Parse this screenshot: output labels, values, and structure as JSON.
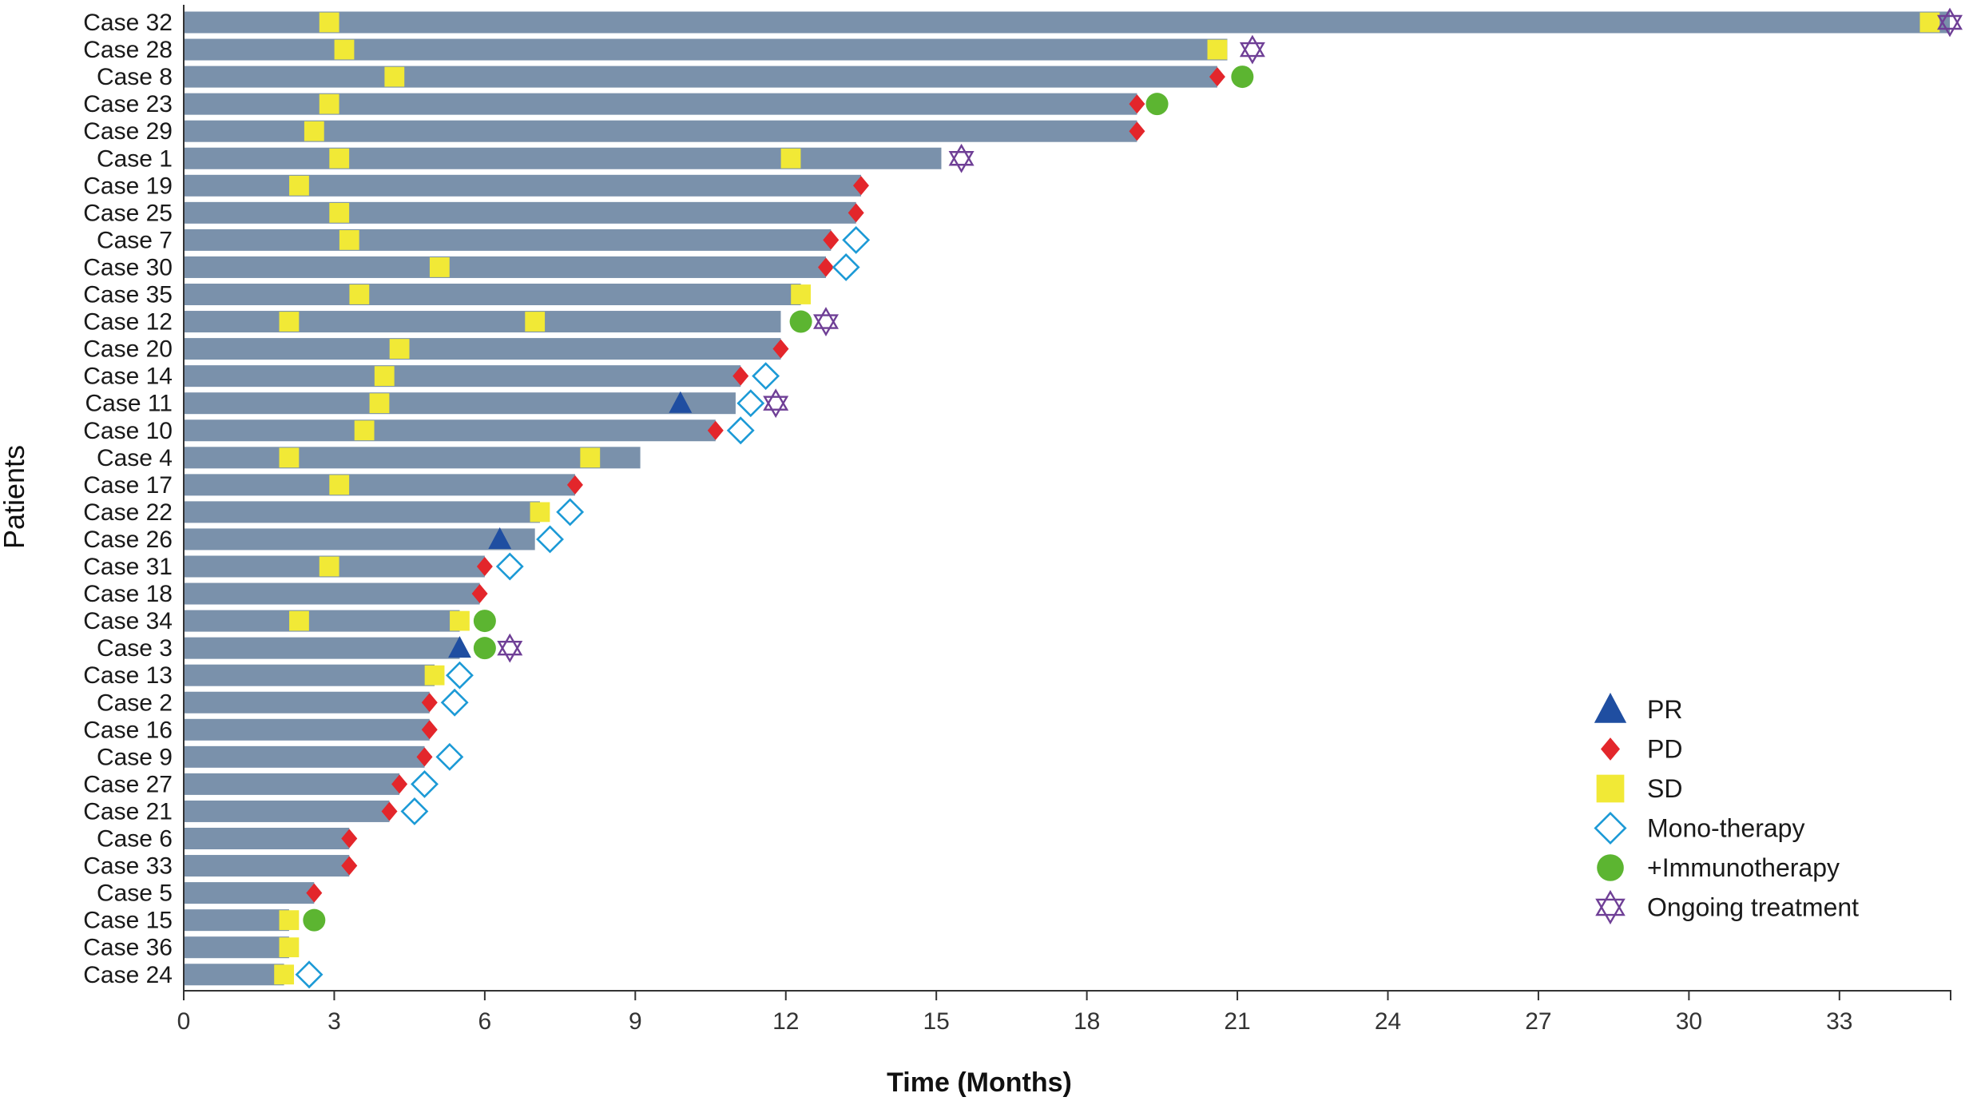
{
  "chart_data": {
    "type": "swimmer",
    "xlabel": "Time (Months)",
    "ylabel": "Patients",
    "xlim": [
      0,
      35.2
    ],
    "xticks": [
      0,
      3,
      6,
      9,
      12,
      15,
      18,
      21,
      24,
      27,
      30,
      33
    ],
    "bar_color": "#7a91ab",
    "legend": [
      {
        "key": "PR",
        "label": "PR",
        "shape": "triangle",
        "color": "#1f4ea1"
      },
      {
        "key": "PD",
        "label": "PD",
        "shape": "diamond",
        "color": "#e3262b"
      },
      {
        "key": "SD",
        "label": "SD",
        "shape": "square",
        "color": "#f1e936"
      },
      {
        "key": "MONO",
        "label": "Mono-therapy",
        "shape": "diamond-open",
        "color": "#1c9ad6"
      },
      {
        "key": "IMMUNO",
        "label": "+Immunotherapy",
        "shape": "circle",
        "color": "#5cb531"
      },
      {
        "key": "ONGOING",
        "label": "Ongoing treatment",
        "shape": "star-open",
        "color": "#6f3f96"
      }
    ],
    "patients": [
      {
        "name": "Case 32",
        "duration": 35.2,
        "markers": [
          [
            "SD",
            2.9
          ],
          [
            "SD",
            34.8
          ],
          [
            "ONGOING",
            35.2
          ]
        ]
      },
      {
        "name": "Case 28",
        "duration": 20.8,
        "markers": [
          [
            "SD",
            3.2
          ],
          [
            "SD",
            20.6
          ],
          [
            "ONGOING",
            21.3
          ]
        ]
      },
      {
        "name": "Case 8",
        "duration": 20.6,
        "markers": [
          [
            "SD",
            4.2
          ],
          [
            "PD",
            20.6
          ],
          [
            "IMMUNO",
            21.1
          ]
        ]
      },
      {
        "name": "Case 23",
        "duration": 19.0,
        "markers": [
          [
            "SD",
            2.9
          ],
          [
            "PD",
            19.0
          ],
          [
            "IMMUNO",
            19.4
          ]
        ]
      },
      {
        "name": "Case 29",
        "duration": 19.0,
        "markers": [
          [
            "SD",
            2.6
          ],
          [
            "PD",
            19.0
          ]
        ]
      },
      {
        "name": "Case 1",
        "duration": 15.1,
        "markers": [
          [
            "SD",
            3.1
          ],
          [
            "SD",
            12.1
          ],
          [
            "ONGOING",
            15.5
          ]
        ]
      },
      {
        "name": "Case 19",
        "duration": 13.5,
        "markers": [
          [
            "SD",
            2.3
          ],
          [
            "PD",
            13.5
          ]
        ]
      },
      {
        "name": "Case 25",
        "duration": 13.4,
        "markers": [
          [
            "SD",
            3.1
          ],
          [
            "PD",
            13.4
          ]
        ]
      },
      {
        "name": "Case 7",
        "duration": 12.9,
        "markers": [
          [
            "SD",
            3.3
          ],
          [
            "PD",
            12.9
          ],
          [
            "MONO",
            13.4
          ]
        ]
      },
      {
        "name": "Case 30",
        "duration": 12.8,
        "markers": [
          [
            "SD",
            5.1
          ],
          [
            "PD",
            12.8
          ],
          [
            "MONO",
            13.2
          ]
        ]
      },
      {
        "name": "Case 35",
        "duration": 12.3,
        "markers": [
          [
            "SD",
            3.5
          ],
          [
            "SD",
            12.3
          ]
        ]
      },
      {
        "name": "Case 12",
        "duration": 11.9,
        "markers": [
          [
            "SD",
            2.1
          ],
          [
            "SD",
            7.0
          ],
          [
            "IMMUNO",
            12.3
          ],
          [
            "ONGOING",
            12.8
          ]
        ]
      },
      {
        "name": "Case 20",
        "duration": 11.9,
        "markers": [
          [
            "SD",
            4.3
          ],
          [
            "PD",
            11.9
          ]
        ]
      },
      {
        "name": "Case 14",
        "duration": 11.1,
        "markers": [
          [
            "SD",
            4.0
          ],
          [
            "PD",
            11.1
          ],
          [
            "MONO",
            11.6
          ]
        ]
      },
      {
        "name": "Case 11",
        "duration": 11.0,
        "markers": [
          [
            "SD",
            3.9
          ],
          [
            "PR",
            9.9
          ],
          [
            "MONO",
            11.3
          ],
          [
            "ONGOING",
            11.8
          ]
        ]
      },
      {
        "name": "Case 10",
        "duration": 10.6,
        "markers": [
          [
            "SD",
            3.6
          ],
          [
            "PD",
            10.6
          ],
          [
            "MONO",
            11.1
          ]
        ]
      },
      {
        "name": "Case 4",
        "duration": 9.1,
        "markers": [
          [
            "SD",
            2.1
          ],
          [
            "SD",
            8.1
          ]
        ]
      },
      {
        "name": "Case 17",
        "duration": 7.8,
        "markers": [
          [
            "SD",
            3.1
          ],
          [
            "PD",
            7.8
          ]
        ]
      },
      {
        "name": "Case 22",
        "duration": 7.1,
        "markers": [
          [
            "SD",
            7.1
          ],
          [
            "MONO",
            7.7
          ]
        ]
      },
      {
        "name": "Case 26",
        "duration": 7.0,
        "markers": [
          [
            "PR",
            6.3
          ],
          [
            "MONO",
            7.3
          ]
        ]
      },
      {
        "name": "Case 31",
        "duration": 6.0,
        "markers": [
          [
            "SD",
            2.9
          ],
          [
            "PD",
            6.0
          ],
          [
            "MONO",
            6.5
          ]
        ]
      },
      {
        "name": "Case 18",
        "duration": 5.9,
        "markers": [
          [
            "PD",
            5.9
          ]
        ]
      },
      {
        "name": "Case 34",
        "duration": 5.5,
        "markers": [
          [
            "SD",
            2.3
          ],
          [
            "SD",
            5.5
          ],
          [
            "IMMUNO",
            6.0
          ]
        ]
      },
      {
        "name": "Case 3",
        "duration": 5.5,
        "markers": [
          [
            "PR",
            5.5
          ],
          [
            "IMMUNO",
            6.0
          ],
          [
            "ONGOING",
            6.5
          ]
        ]
      },
      {
        "name": "Case 13",
        "duration": 5.0,
        "markers": [
          [
            "SD",
            5.0
          ],
          [
            "MONO",
            5.5
          ]
        ]
      },
      {
        "name": "Case 2",
        "duration": 4.9,
        "markers": [
          [
            "PD",
            4.9
          ],
          [
            "MONO",
            5.4
          ]
        ]
      },
      {
        "name": "Case 16",
        "duration": 4.9,
        "markers": [
          [
            "PD",
            4.9
          ]
        ]
      },
      {
        "name": "Case 9",
        "duration": 4.8,
        "markers": [
          [
            "PD",
            4.8
          ],
          [
            "MONO",
            5.3
          ]
        ]
      },
      {
        "name": "Case 27",
        "duration": 4.3,
        "markers": [
          [
            "PD",
            4.3
          ],
          [
            "MONO",
            4.8
          ]
        ]
      },
      {
        "name": "Case 21",
        "duration": 4.1,
        "markers": [
          [
            "PD",
            4.1
          ],
          [
            "MONO",
            4.6
          ]
        ]
      },
      {
        "name": "Case 6",
        "duration": 3.3,
        "markers": [
          [
            "PD",
            3.3
          ]
        ]
      },
      {
        "name": "Case 33",
        "duration": 3.3,
        "markers": [
          [
            "PD",
            3.3
          ]
        ]
      },
      {
        "name": "Case 5",
        "duration": 2.6,
        "markers": [
          [
            "PD",
            2.6
          ]
        ]
      },
      {
        "name": "Case 15",
        "duration": 2.1,
        "markers": [
          [
            "SD",
            2.1
          ],
          [
            "IMMUNO",
            2.6
          ]
        ]
      },
      {
        "name": "Case 36",
        "duration": 2.1,
        "markers": [
          [
            "SD",
            2.1
          ]
        ]
      },
      {
        "name": "Case 24",
        "duration": 2.0,
        "markers": [
          [
            "SD",
            2.0
          ],
          [
            "MONO",
            2.5
          ]
        ]
      }
    ]
  }
}
